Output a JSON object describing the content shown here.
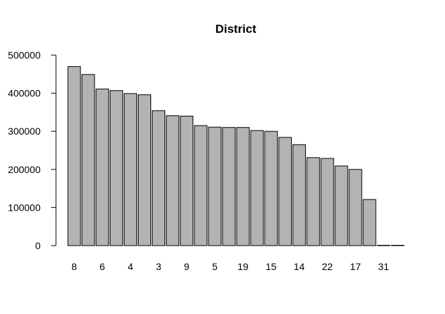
{
  "chart_data": {
    "type": "bar",
    "title": "District",
    "xlabel": "",
    "ylabel": "",
    "ylim": [
      0,
      500000
    ],
    "y_ticks": [
      0,
      100000,
      200000,
      300000,
      400000,
      500000
    ],
    "y_tick_labels": [
      "0",
      "100000",
      "200000",
      "300000",
      "400000",
      "500000"
    ],
    "x_tick_labels": [
      "8",
      "6",
      "4",
      "3",
      "9",
      "5",
      "19",
      "15",
      "14",
      "22",
      "17",
      "31"
    ],
    "x_tick_bar_index": [
      0,
      2,
      4,
      6,
      8,
      10,
      12,
      14,
      16,
      18,
      20,
      22
    ],
    "values": [
      470000,
      449000,
      411000,
      407000,
      399000,
      396000,
      354000,
      341000,
      340000,
      315000,
      311000,
      310000,
      310000,
      302000,
      300000,
      284000,
      265000,
      231000,
      229000,
      209000,
      200000,
      121000,
      1000,
      1000
    ],
    "bar_color": "#b3b3b3",
    "grid": false,
    "legend": "none"
  }
}
